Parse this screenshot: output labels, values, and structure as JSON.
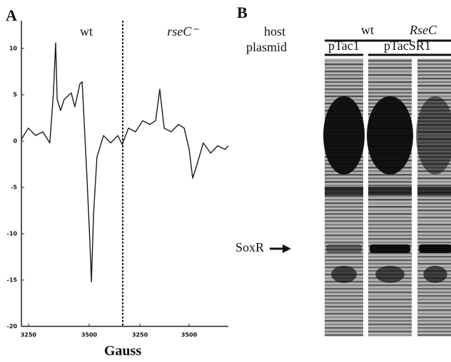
{
  "figure": {
    "panel_label": "A",
    "x_label": "Gauss"
  },
  "chart_data": [
    {
      "type": "line",
      "annotation": "wt",
      "annotation_italic": false,
      "color": "#1a1a1a",
      "xlim": [
        3221,
        3638
      ],
      "ylim": [
        -20,
        13
      ],
      "xticks": [
        3250,
        3500
      ],
      "yticks": [
        10,
        5,
        0,
        -5,
        -10,
        -15,
        -20
      ],
      "x": [
        3221,
        3250,
        3279,
        3309,
        3338,
        3353,
        3362,
        3368,
        3382,
        3397,
        3426,
        3441,
        3462,
        3471,
        3479,
        3491,
        3503,
        3509,
        3518,
        3532,
        3559,
        3588,
        3618,
        3638
      ],
      "values": [
        0.2,
        1.4,
        0.6,
        1.0,
        -0.2,
        5.2,
        10.6,
        4.5,
        3.3,
        4.5,
        5.2,
        3.7,
        6.2,
        6.4,
        2.2,
        -4.0,
        -10.9,
        -15.2,
        -7.9,
        -1.7,
        0.6,
        -0.2,
        0.6,
        -0.5
      ]
    },
    {
      "type": "line",
      "annotation": "rseC⁻",
      "annotation_italic": true,
      "color": "#1a1a1a",
      "xlim": [
        3163,
        3699
      ],
      "ylim": [
        -20,
        13
      ],
      "xticks": [
        3250,
        3500
      ],
      "x": [
        3163,
        3192,
        3228,
        3264,
        3301,
        3330,
        3351,
        3373,
        3409,
        3446,
        3475,
        3500,
        3518,
        3536,
        3572,
        3609,
        3645,
        3682,
        3699
      ],
      "values": [
        -0.2,
        1.4,
        1.0,
        2.2,
        1.8,
        2.2,
        5.6,
        1.4,
        1.0,
        1.8,
        1.4,
        -0.9,
        -4.0,
        -2.8,
        -0.2,
        -1.3,
        -0.5,
        -0.9,
        -0.5
      ]
    }
  ],
  "panel_b": {
    "panel_label": "B",
    "host_label": "host",
    "hosts": [
      "wt",
      "RseC"
    ],
    "plasmid_label": "plasmid",
    "plasmids": [
      "pTac1",
      "pTacSR1"
    ],
    "marker": "SoxR"
  }
}
